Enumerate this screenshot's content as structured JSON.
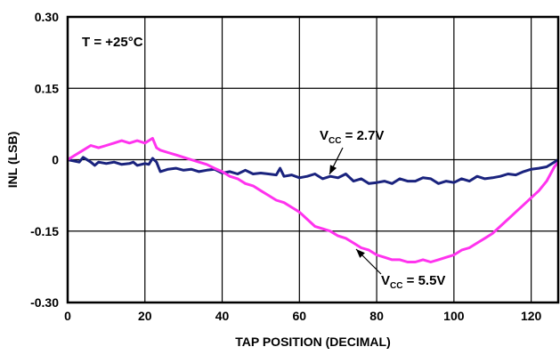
{
  "chart_data": {
    "type": "line",
    "title": "",
    "xlabel": "TAP POSITION (DECIMAL)",
    "ylabel": "INL (LSB)",
    "xlim": [
      0,
      127
    ],
    "ylim": [
      -0.3,
      0.3
    ],
    "grid": true,
    "x_ticks": [
      {
        "value": 0,
        "label": "0"
      },
      {
        "value": 20,
        "label": "20"
      },
      {
        "value": 40,
        "label": "40"
      },
      {
        "value": 60,
        "label": "60"
      },
      {
        "value": 80,
        "label": "80"
      },
      {
        "value": 100,
        "label": "100"
      },
      {
        "value": 120,
        "label": "120"
      }
    ],
    "y_ticks": [
      {
        "value": 0.3,
        "label": "0.30"
      },
      {
        "value": 0.15,
        "label": "0.15"
      },
      {
        "value": 0,
        "label": "0"
      },
      {
        "value": -0.15,
        "label": "-0.15"
      },
      {
        "value": -0.3,
        "label": "-0.30"
      }
    ],
    "condition_label": "T = +25°C",
    "series": [
      {
        "label_main": "V",
        "label_sub": "CC",
        "label_rest": " = 2.7V",
        "color": "#1a237e",
        "x": [
          0,
          3,
          4,
          6,
          7,
          8,
          10,
          12,
          14,
          16,
          17,
          18,
          20,
          21,
          22,
          23,
          24,
          26,
          28,
          30,
          32,
          34,
          36,
          38,
          40,
          42,
          44,
          46,
          48,
          50,
          52,
          54,
          55,
          56,
          58,
          60,
          62,
          64,
          66,
          68,
          70,
          72,
          74,
          76,
          78,
          80,
          82,
          84,
          86,
          88,
          90,
          92,
          94,
          96,
          98,
          100,
          102,
          104,
          106,
          108,
          110,
          112,
          114,
          116,
          118,
          120,
          122,
          124,
          126,
          127
        ],
        "y": [
          0.0,
          -0.005,
          0.005,
          -0.005,
          -0.012,
          -0.005,
          -0.008,
          -0.005,
          -0.01,
          -0.008,
          -0.005,
          -0.012,
          -0.008,
          -0.01,
          0.003,
          -0.005,
          -0.025,
          -0.02,
          -0.018,
          -0.022,
          -0.02,
          -0.025,
          -0.022,
          -0.02,
          -0.028,
          -0.025,
          -0.03,
          -0.022,
          -0.03,
          -0.028,
          -0.03,
          -0.032,
          -0.018,
          -0.035,
          -0.032,
          -0.038,
          -0.035,
          -0.03,
          -0.04,
          -0.035,
          -0.038,
          -0.03,
          -0.045,
          -0.04,
          -0.05,
          -0.048,
          -0.045,
          -0.05,
          -0.04,
          -0.045,
          -0.045,
          -0.038,
          -0.04,
          -0.05,
          -0.045,
          -0.048,
          -0.04,
          -0.045,
          -0.035,
          -0.04,
          -0.038,
          -0.035,
          -0.03,
          -0.032,
          -0.025,
          -0.02,
          -0.018,
          -0.015,
          -0.005,
          0.0
        ]
      },
      {
        "label_main": "V",
        "label_sub": "CC",
        "label_rest": " = 5.5V",
        "color": "#ff33ee",
        "x": [
          0,
          2,
          4,
          6,
          8,
          10,
          12,
          14,
          16,
          18,
          20,
          22,
          23,
          24,
          26,
          28,
          30,
          32,
          34,
          36,
          38,
          40,
          42,
          44,
          46,
          48,
          50,
          52,
          54,
          56,
          58,
          60,
          62,
          64,
          66,
          68,
          70,
          72,
          74,
          76,
          78,
          80,
          82,
          84,
          86,
          88,
          90,
          92,
          94,
          96,
          98,
          100,
          102,
          104,
          106,
          108,
          110,
          112,
          114,
          116,
          118,
          120,
          122,
          124,
          126,
          127
        ],
        "y": [
          0.0,
          0.01,
          0.02,
          0.03,
          0.025,
          0.03,
          0.035,
          0.04,
          0.035,
          0.04,
          0.035,
          0.045,
          0.025,
          0.02,
          0.015,
          0.01,
          0.005,
          0.0,
          -0.005,
          -0.01,
          -0.018,
          -0.025,
          -0.035,
          -0.04,
          -0.05,
          -0.055,
          -0.065,
          -0.075,
          -0.085,
          -0.09,
          -0.1,
          -0.11,
          -0.125,
          -0.14,
          -0.145,
          -0.15,
          -0.16,
          -0.165,
          -0.175,
          -0.185,
          -0.19,
          -0.2,
          -0.205,
          -0.21,
          -0.21,
          -0.215,
          -0.215,
          -0.21,
          -0.215,
          -0.21,
          -0.205,
          -0.2,
          -0.19,
          -0.185,
          -0.175,
          -0.165,
          -0.155,
          -0.14,
          -0.125,
          -0.11,
          -0.095,
          -0.08,
          -0.065,
          -0.045,
          -0.015,
          -0.005
        ]
      }
    ]
  }
}
